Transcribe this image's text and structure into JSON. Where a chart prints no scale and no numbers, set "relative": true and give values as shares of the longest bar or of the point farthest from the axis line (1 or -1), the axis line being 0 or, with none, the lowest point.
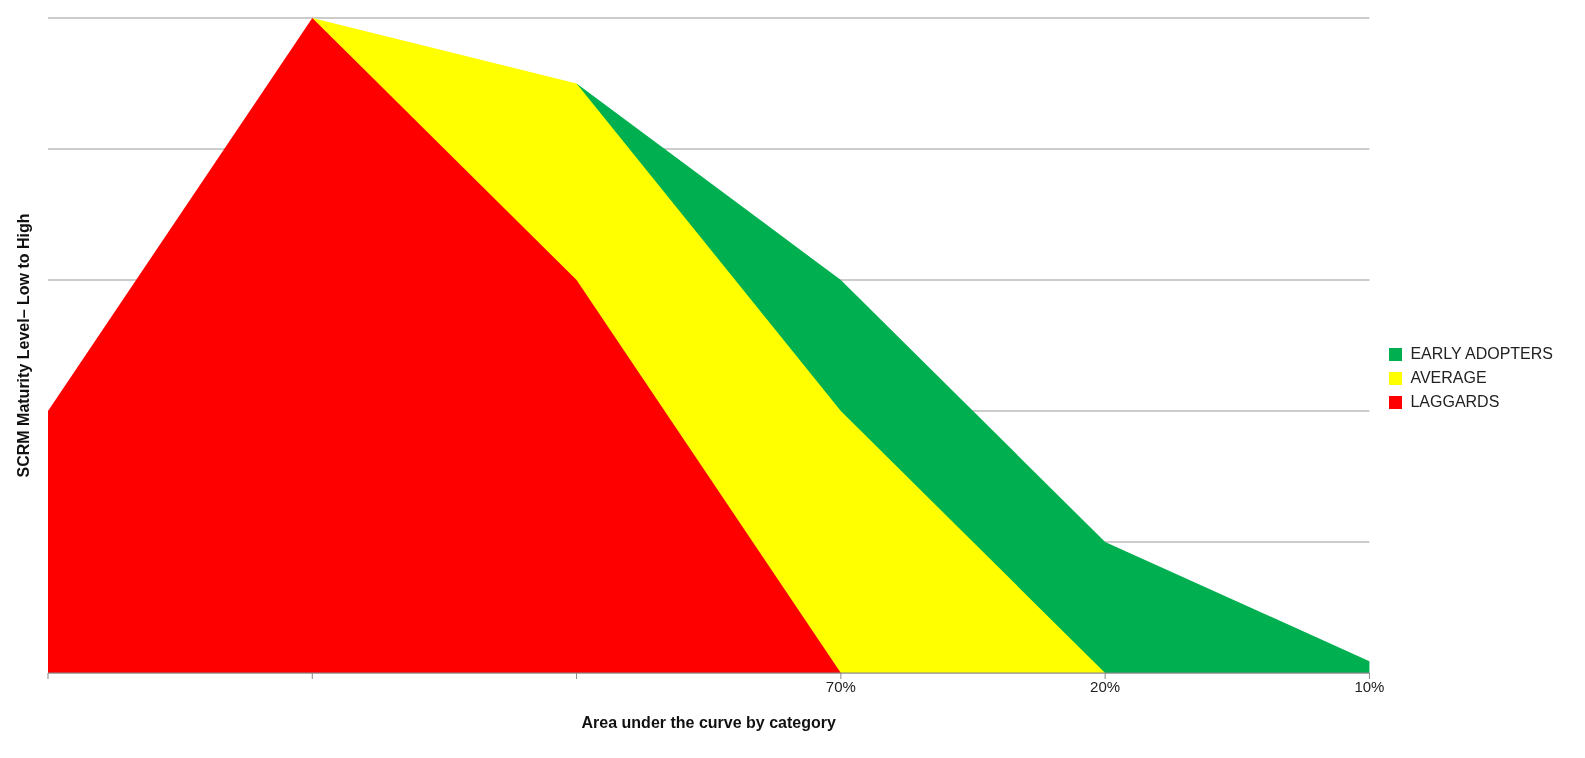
{
  "chart_data": {
    "type": "area",
    "relative": true,
    "xlabel": "Area under the curve by category",
    "ylabel": "SCRM Maturity Level– Low to High",
    "categories": [
      null,
      null,
      null,
      "70%",
      "20%",
      "10%"
    ],
    "grid": "y",
    "legend": "right",
    "tick_labels": "x",
    "series": [
      {
        "name": "EARLY ADOPTERS",
        "color": "#00b050",
        "values": [
          null,
          null,
          0.9,
          0.6,
          0.2,
          0.018
        ]
      },
      {
        "name": "AVERAGE",
        "color": "#ffff00",
        "values": [
          null,
          1,
          0.9,
          0.4,
          0,
          null
        ]
      },
      {
        "name": "LAGGARDS",
        "color": "#ff0000",
        "values": [
          0.4,
          1,
          0.6,
          0,
          null,
          null
        ]
      }
    ]
  }
}
